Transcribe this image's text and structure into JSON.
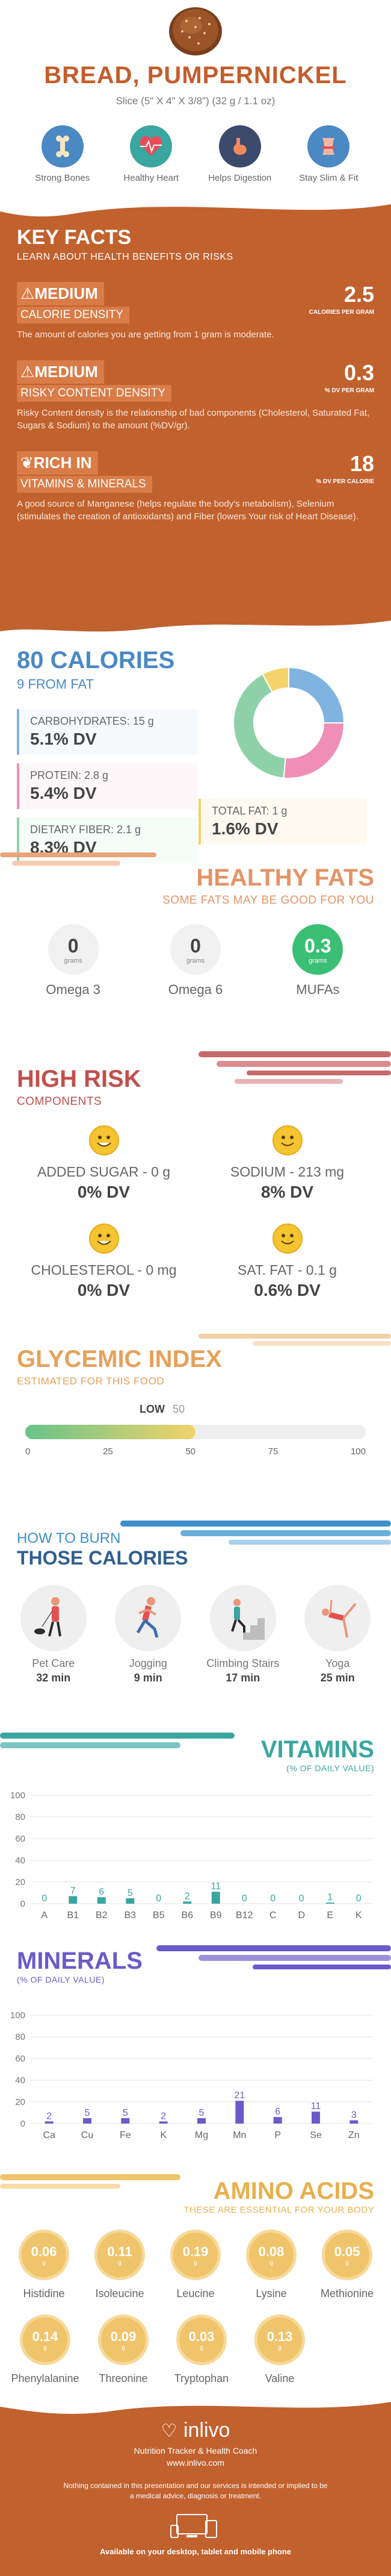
{
  "header": {
    "title": "BREAD, PUMPERNICKEL",
    "serving": "Slice (5\" X 4\" X 3/8\") (32 g / 1.1 oz)"
  },
  "benefits": [
    {
      "label": "Strong Bones",
      "icon": "bone-icon",
      "color": "#4a89c4"
    },
    {
      "label": "Healthy Heart",
      "icon": "heart-icon",
      "color": "#3aa6a0"
    },
    {
      "label": "Helps Digestion",
      "icon": "stomach-icon",
      "color": "#3c4a6b"
    },
    {
      "label": "Stay Slim & Fit",
      "icon": "waist-icon",
      "color": "#4a89c4"
    }
  ],
  "key_facts": {
    "title": "KEY FACTS",
    "subtitle": "LEARN ABOUT HEALTH BENEFITS OR RISKS",
    "items": [
      {
        "level": "MEDIUM",
        "category": "CALORIE DENSITY",
        "value": "2.5",
        "unit": "CALORIES PER GRAM",
        "text": "The amount of calories you are getting from 1 gram is moderate."
      },
      {
        "level": "MEDIUM",
        "category": "RISKY CONTENT DENSITY",
        "value": "0.3",
        "unit": "% DV PER GRAM",
        "text": "Risky Content density is the relationship of bad components (Cholesterol, Saturated Fat, Sugars & Sodium) to the amount (%DV/gr)."
      },
      {
        "level": "RICH IN",
        "category": "VITAMINS & MINERALS",
        "value": "18",
        "unit": "% DV PER CALORIE",
        "text": "A good source of Manganese (helps regulate the body's metabolism), Selenium (stimulates the creation of antioxidants) and Fiber (lowers Your risk of Heart Disease)."
      }
    ]
  },
  "calories": {
    "title": "80 CALORIES",
    "from_fat": "9 FROM FAT",
    "nutrients": [
      {
        "label": "CARBOHYDRATES: 15 g",
        "dv": "5.1% DV",
        "color": "#7fb3e0"
      },
      {
        "label": "PROTEIN: 2.8 g",
        "dv": "5.4% DV",
        "color": "#ef8fb5"
      },
      {
        "label": "DIETARY FIBER: 2.1 g",
        "dv": "8.3% DV",
        "color": "#8ed1a8"
      },
      {
        "label": "TOTAL FAT: 1 g",
        "dv": "1.6% DV",
        "color": "#f5d36a"
      }
    ]
  },
  "healthy_fats": {
    "title": "HEALTHY FATS",
    "subtitle": "SOME FATS MAY BE GOOD FOR YOU",
    "unit": "grams",
    "items": [
      {
        "name": "Omega 3",
        "value": "0"
      },
      {
        "name": "Omega 6",
        "value": "0"
      },
      {
        "name": "MUFAs",
        "value": "0.3"
      }
    ]
  },
  "high_risk": {
    "title": "HIGH RISK",
    "subtitle": "COMPONENTS",
    "items": [
      {
        "label": "ADDED SUGAR - 0 g",
        "dv": "0% DV"
      },
      {
        "label": "SODIUM - 213 mg",
        "dv": "8% DV"
      },
      {
        "label": "CHOLESTEROL - 0 mg",
        "dv": "0% DV"
      },
      {
        "label": "SAT. FAT - 0.1 g",
        "dv": "0.6% DV"
      }
    ]
  },
  "glycemic": {
    "title": "GLYCEMIC INDEX",
    "subtitle": "ESTIMATED FOR THIS FOOD",
    "level": "LOW",
    "value": "50",
    "ticks": [
      "0",
      "25",
      "50",
      "75",
      "100"
    ]
  },
  "burn": {
    "title1": "HOW TO BURN",
    "title2": "THOSE CALORIES",
    "items": [
      {
        "label": "Pet Care",
        "time": "32 min",
        "icon": "dog-walk-icon"
      },
      {
        "label": "Jogging",
        "time": "9 min",
        "icon": "jogging-icon"
      },
      {
        "label": "Climbing Stairs",
        "time": "17 min",
        "icon": "stairs-icon"
      },
      {
        "label": "Yoga",
        "time": "25 min",
        "icon": "yoga-icon"
      }
    ]
  },
  "vitamins": {
    "title": "VITAMINS",
    "subtitle": "(% OF DAILY VALUE)"
  },
  "minerals": {
    "title": "MINERALS",
    "subtitle": "(% OF DAILY VALUE)"
  },
  "chart_data": [
    {
      "type": "bar",
      "categories": [
        "A",
        "B1",
        "B2",
        "B3",
        "B5",
        "B6",
        "B9",
        "B12",
        "C",
        "D",
        "E",
        "K"
      ],
      "values": [
        0,
        7,
        6,
        5,
        0,
        2,
        11,
        0,
        0,
        0,
        1,
        0
      ],
      "ylim": [
        0,
        100
      ],
      "yticks": [
        "0",
        "20",
        "40",
        "60",
        "80",
        "100"
      ],
      "color": "#3aa6a0"
    },
    {
      "type": "bar",
      "categories": [
        "Ca",
        "Cu",
        "Fe",
        "K",
        "Mg",
        "Mn",
        "P",
        "Se",
        "Zn"
      ],
      "values": [
        2,
        5,
        5,
        2,
        5,
        21,
        6,
        11,
        3
      ],
      "ylim": [
        0,
        100
      ],
      "yticks": [
        "0",
        "20",
        "40",
        "60",
        "80",
        "100"
      ],
      "color": "#6a5bc9"
    },
    {
      "type": "pie",
      "categories": [
        "Carbohydrates",
        "Protein",
        "Dietary Fiber",
        "Total Fat"
      ],
      "values": [
        5.1,
        5.4,
        8.3,
        1.6
      ],
      "colors": [
        "#7fb3e0",
        "#ef8fb5",
        "#8ed1a8",
        "#f5d36a"
      ]
    }
  ],
  "amino": {
    "title": "AMINO ACIDS",
    "subtitle": "THESE ARE ESSENTIAL FOR YOUR BODY",
    "unit": "g",
    "items": [
      {
        "name": "Histidine",
        "value": "0.06"
      },
      {
        "name": "Isoleucine",
        "value": "0.11"
      },
      {
        "name": "Leucine",
        "value": "0.19"
      },
      {
        "name": "Lysine",
        "value": "0.08"
      },
      {
        "name": "Methionine",
        "value": "0.05"
      },
      {
        "name": "Phenylalanine",
        "value": "0.14"
      },
      {
        "name": "Threonine",
        "value": "0.09"
      },
      {
        "name": "Tryptophan",
        "value": "0.03"
      },
      {
        "name": "Valine",
        "value": "0.13"
      }
    ]
  },
  "footer": {
    "brand": "inlivo",
    "tagline": "Nutrition Tracker & Health Coach",
    "url": "www.inlivo.com",
    "disclaimer": "Nothing contained in this presentation and our services is intended or implied to be a medical advice, diagnosis or treatment.",
    "available": "Available on your desktop, tablet and mobile phone"
  }
}
